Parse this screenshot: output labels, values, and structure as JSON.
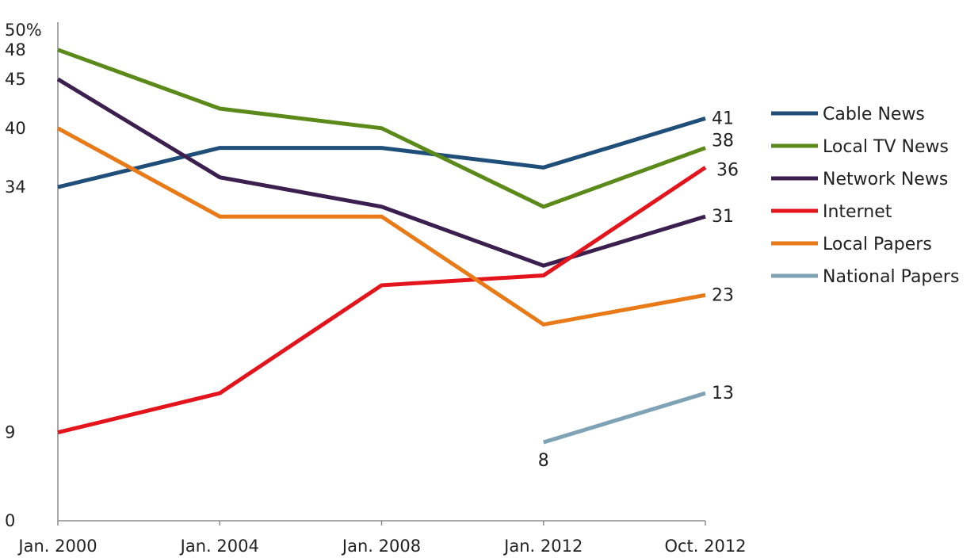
{
  "chart_data": {
    "type": "line",
    "title": "",
    "xlabel": "",
    "ylabel": "",
    "x": [
      "Jan. 2000",
      "Jan. 2004",
      "Jan. 2008",
      "Jan. 2012",
      "Oct. 2012"
    ],
    "ylim": [
      0,
      50
    ],
    "y_ticks": [
      "0",
      "9",
      "34",
      "40",
      "45",
      "48",
      "50%"
    ],
    "grid": false,
    "legend": "right",
    "series": [
      {
        "name": "Cable News",
        "color": "#1f4e79",
        "values": [
          34,
          38,
          38,
          36,
          41
        ]
      },
      {
        "name": "Local TV News",
        "color": "#5b8a1a",
        "values": [
          48,
          42,
          40,
          32,
          38
        ]
      },
      {
        "name": "Network News",
        "color": "#3b1f4f",
        "values": [
          45,
          35,
          32,
          26,
          31
        ]
      },
      {
        "name": "Internet",
        "color": "#e3141b",
        "values": [
          9,
          13,
          24,
          25,
          36
        ]
      },
      {
        "name": "Local Papers",
        "color": "#e87a17",
        "values": [
          40,
          31,
          31,
          20,
          23
        ]
      },
      {
        "name": "National Papers",
        "color": "#7fa3b5",
        "values": [
          null,
          null,
          null,
          8,
          13
        ]
      }
    ],
    "data_labels": [
      {
        "series": "Cable News",
        "text": "41"
      },
      {
        "series": "Local TV News",
        "text": "38"
      },
      {
        "series": "Internet",
        "text": "36"
      },
      {
        "series": "Network News",
        "text": "31"
      },
      {
        "series": "Local Papers",
        "text": "23"
      },
      {
        "series": "National Papers",
        "text": "13"
      },
      {
        "series": "National Papers",
        "text": "8"
      }
    ]
  }
}
